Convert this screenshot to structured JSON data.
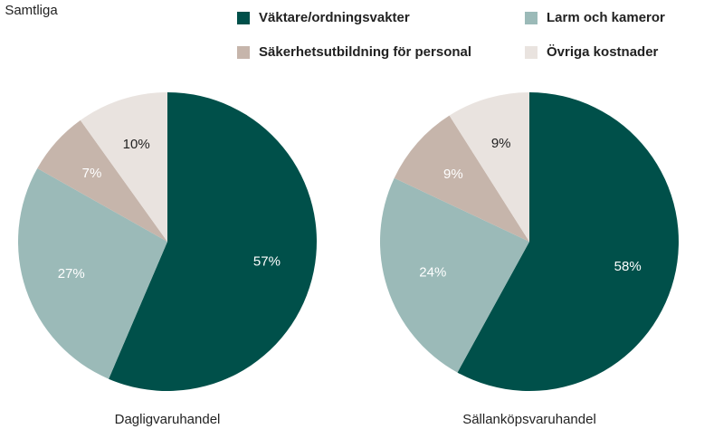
{
  "chart_data": [
    {
      "type": "pie",
      "subtitle": ": Samtliga",
      "title": "Dagligvaruhandel",
      "categories": [
        "Väktare/ordningsvakter",
        "Larm och kameror",
        "Säkerhetsutbildning för personal",
        "Övriga kostnader"
      ],
      "values": [
        57,
        27,
        7,
        10
      ],
      "value_labels": [
        "57%",
        "27%",
        "7%",
        "10%"
      ],
      "colors": [
        "#00504a",
        "#9bbab8",
        "#c6b5ab",
        "#e9e3df"
      ]
    },
    {
      "type": "pie",
      "title": "Sällanköpsvaruhandel",
      "categories": [
        "Väktare/ordningsvakter",
        "Larm och kameror",
        "Säkerhetsutbildning för personal",
        "Övriga kostnader"
      ],
      "values": [
        58,
        24,
        9,
        9
      ],
      "value_labels": [
        "58%",
        "24%",
        "9%",
        "9%"
      ],
      "colors": [
        "#00504a",
        "#9bbab8",
        "#c6b5ab",
        "#e9e3df"
      ]
    }
  ]
}
